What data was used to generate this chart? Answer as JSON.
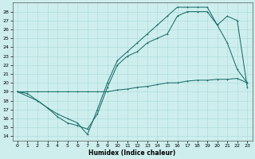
{
  "xlabel": "Humidex (Indice chaleur)",
  "ylabel": "",
  "bg_color": "#ceeeed",
  "grid_color": "#aedddd",
  "line_color": "#1a6e6a",
  "xlim": [
    -0.5,
    23.5
  ],
  "ylim": [
    13.5,
    29.0
  ],
  "xticks": [
    0,
    1,
    2,
    3,
    4,
    5,
    6,
    7,
    8,
    9,
    10,
    11,
    12,
    13,
    14,
    15,
    16,
    17,
    18,
    19,
    20,
    21,
    22,
    23
  ],
  "yticks": [
    14,
    15,
    16,
    17,
    18,
    19,
    20,
    21,
    22,
    23,
    24,
    25,
    26,
    27,
    28
  ],
  "line_slow_x": [
    0,
    1,
    2,
    3,
    4,
    5,
    6,
    7,
    8,
    9,
    10,
    11,
    12,
    13,
    14,
    15,
    16,
    17,
    18,
    19,
    20,
    21,
    22,
    23
  ],
  "line_slow_y": [
    19,
    19,
    19,
    19,
    19,
    19,
    19,
    19,
    19,
    19,
    19.2,
    19.3,
    19.5,
    19.6,
    19.8,
    20.0,
    20.0,
    20.2,
    20.3,
    20.3,
    20.4,
    20.4,
    20.5,
    20.0
  ],
  "line_mid_x": [
    0,
    2,
    3,
    4,
    5,
    6,
    7,
    8,
    9,
    10,
    11,
    12,
    13,
    14,
    15,
    16,
    17,
    18,
    19,
    20,
    21,
    22,
    23
  ],
  "line_mid_y": [
    19,
    18,
    17.2,
    16.2,
    15.5,
    15.2,
    14.8,
    16.5,
    19.5,
    22,
    23,
    23.5,
    24.5,
    25,
    25.5,
    27.5,
    28,
    28,
    28,
    26.5,
    24.5,
    21.5,
    20.0
  ],
  "line_steep_x": [
    0,
    1,
    2,
    3,
    4,
    5,
    6,
    7,
    8,
    9,
    10,
    11,
    12,
    13,
    14,
    15,
    16,
    17,
    18,
    19,
    20,
    21,
    22,
    23
  ],
  "line_steep_y": [
    19,
    18.8,
    18,
    17.2,
    16.5,
    16.0,
    15.5,
    14.2,
    17.0,
    20.0,
    22.5,
    23.5,
    24.5,
    25.5,
    26.5,
    27.5,
    28.5,
    28.5,
    28.5,
    28.5,
    26.5,
    27.5,
    27.0,
    19.5
  ]
}
